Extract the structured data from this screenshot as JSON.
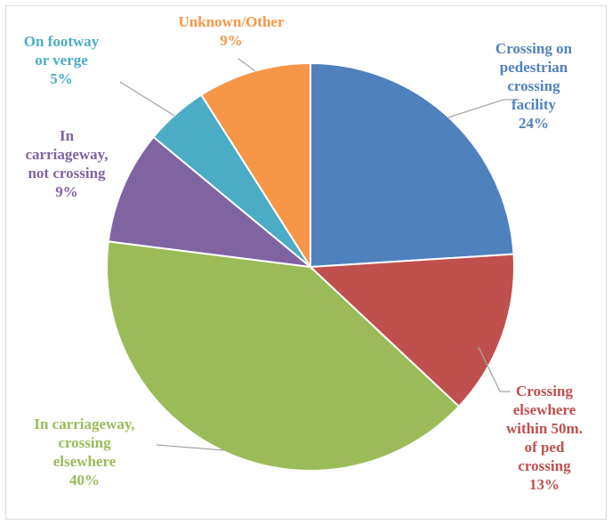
{
  "chart_data": {
    "type": "pie",
    "title": "",
    "slices": [
      {
        "lines": [
          "Crossing on",
          "pedestrian",
          "crossing",
          "facility"
        ],
        "pct_label": "24%",
        "value": 24,
        "color": "#4f81bd"
      },
      {
        "lines": [
          "Crossing",
          "elsewhere",
          "within 50m.",
          "of ped",
          "crossing"
        ],
        "pct_label": "13%",
        "value": 13,
        "color": "#c0504d"
      },
      {
        "lines": [
          "In carriageway,",
          "crossing",
          "elsewhere"
        ],
        "pct_label": "40%",
        "value": 40,
        "color": "#9bbb59"
      },
      {
        "lines": [
          "In",
          "carriageway,",
          "not crossing"
        ],
        "pct_label": "9%",
        "value": 9,
        "color": "#8064a2"
      },
      {
        "lines": [
          "On footway",
          "or verge"
        ],
        "pct_label": "5%",
        "value": 5,
        "color": "#4bacc6"
      },
      {
        "lines": [
          "Unknown/Other"
        ],
        "pct_label": "9%",
        "value": 9,
        "color": "#f79646"
      }
    ],
    "legend": "none",
    "start_angle": "12 o'clock, clockwise"
  }
}
